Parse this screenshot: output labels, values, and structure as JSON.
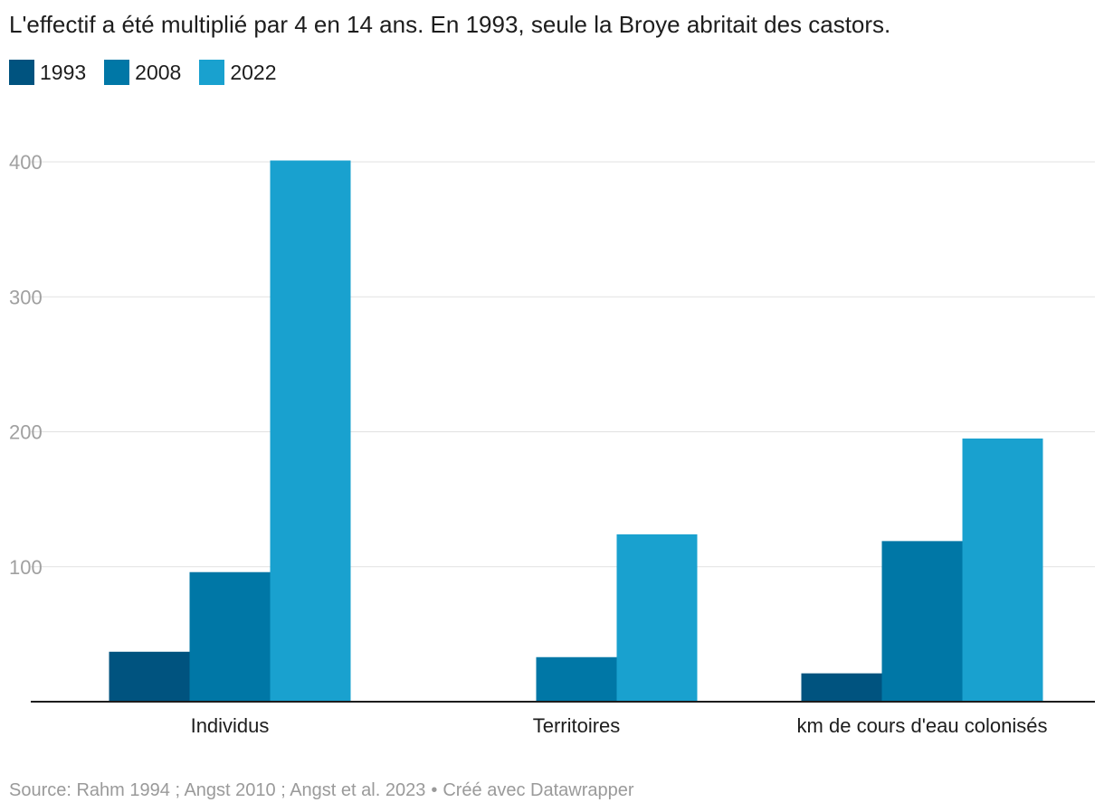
{
  "title": "L'effectif a été multiplié par 4 en 14 ans. En 1993, seule la Broye abritait des castors.",
  "legend": [
    {
      "label": "1993",
      "color": "#00537f"
    },
    {
      "label": "2008",
      "color": "#0077a6"
    },
    {
      "label": "2022",
      "color": "#19a1cf"
    }
  ],
  "source": {
    "text": "Source: Rahm 1994 ; Angst 2010 ; Angst et al. 2023",
    "separator": "•",
    "credit": "Créé avec Datawrapper"
  },
  "chart_data": {
    "type": "bar",
    "categories": [
      "Individus",
      "Territoires",
      "km de cours d'eau colonisés"
    ],
    "series": [
      {
        "name": "1993",
        "values": [
          37,
          0,
          21
        ],
        "color": "#00537f"
      },
      {
        "name": "2008",
        "values": [
          96,
          33,
          119
        ],
        "color": "#0077a6"
      },
      {
        "name": "2022",
        "values": [
          401,
          124,
          195
        ],
        "color": "#19a1cf"
      }
    ],
    "yticks": [
      100,
      200,
      300,
      400
    ],
    "ylim": [
      0,
      400
    ],
    "grid": true,
    "legend_position": "top-left",
    "xlabel": "",
    "ylabel": ""
  }
}
